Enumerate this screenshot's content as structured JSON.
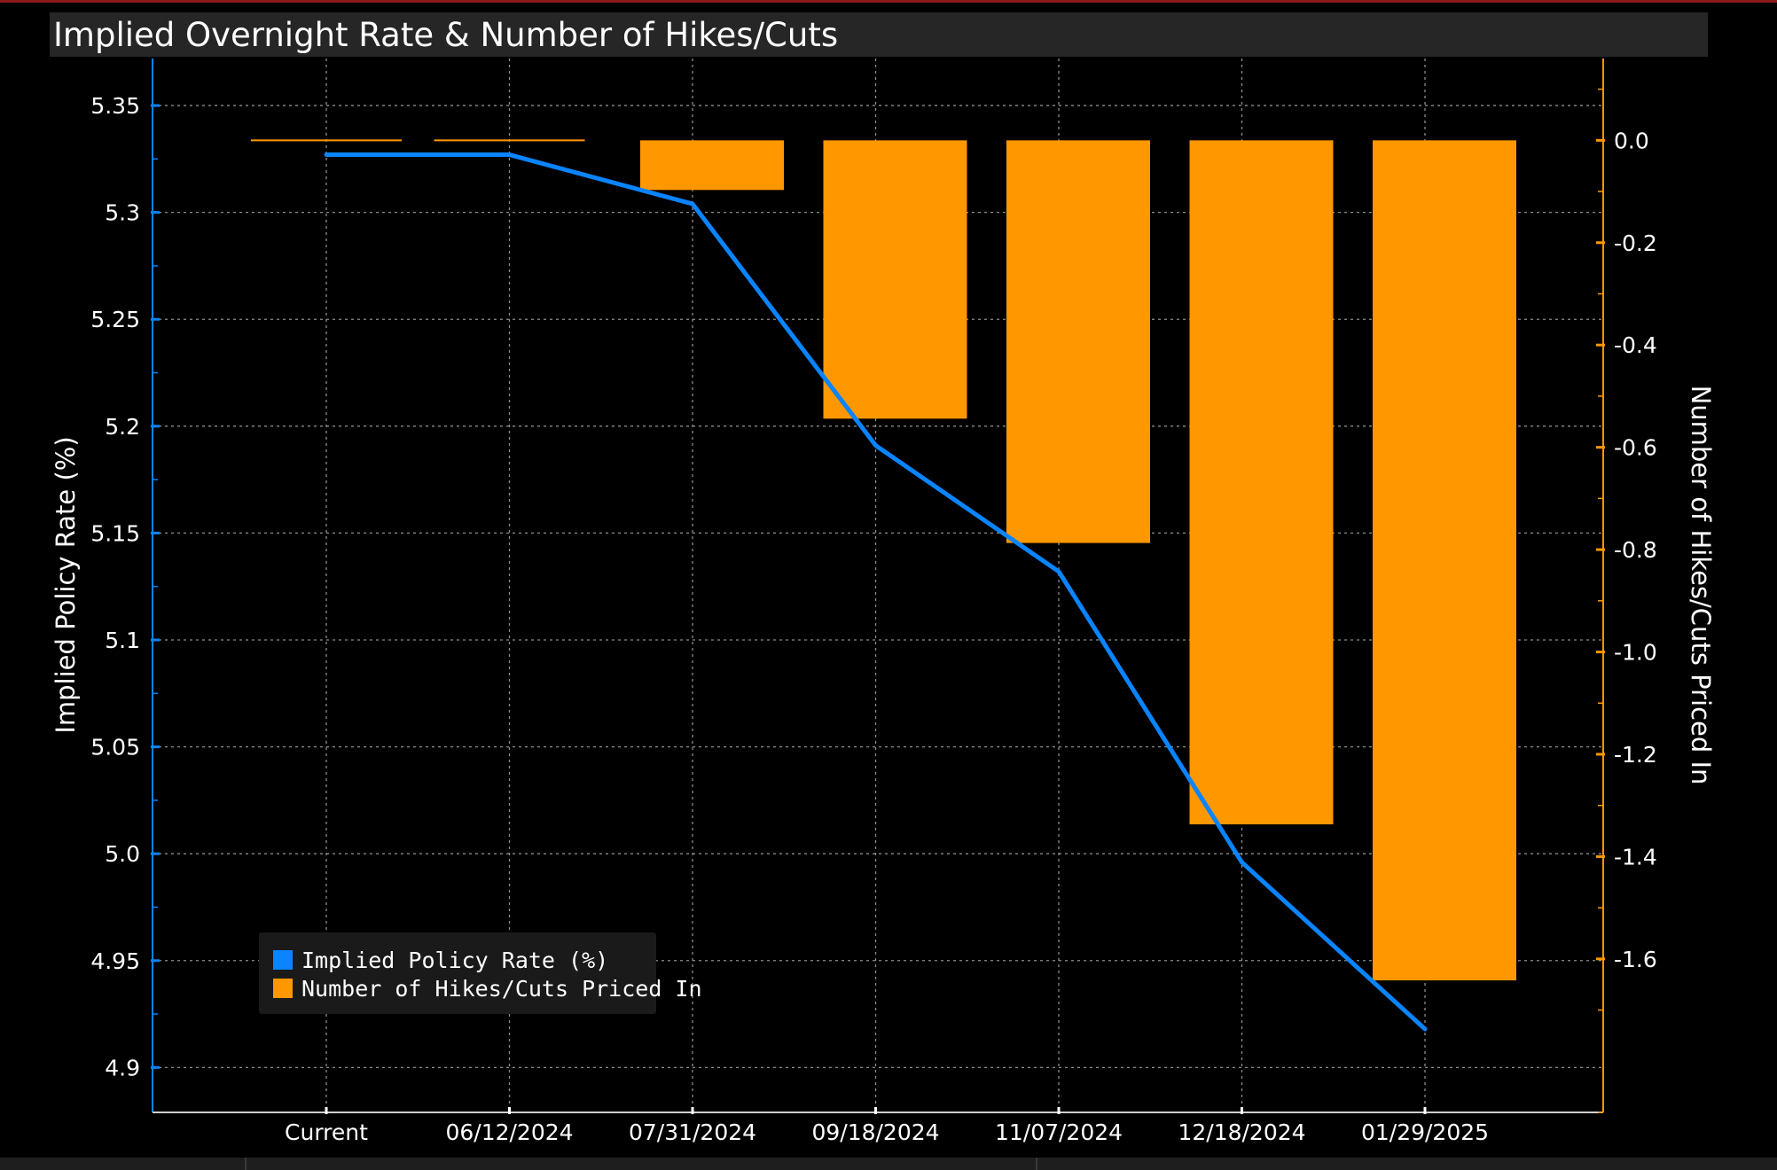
{
  "title": "Implied Overnight Rate & Number of Hikes/Cuts",
  "colors": {
    "line": "#0a84ff",
    "bars": "#ff9800",
    "grid": "#8c8c8c",
    "background": "#000000"
  },
  "chart_data": {
    "type": "bar+line",
    "title": "Implied Overnight Rate & Number of Hikes/Cuts",
    "categories": [
      "Current",
      "06/12/2024",
      "07/31/2024",
      "09/18/2024",
      "11/07/2024",
      "12/18/2024",
      "01/29/2025"
    ],
    "series": [
      {
        "name": "Implied Policy Rate (%)",
        "type": "line",
        "axis": "left",
        "color": "#0a84ff",
        "values": [
          5.327,
          5.327,
          5.304,
          5.191,
          5.132,
          4.996,
          4.918
        ]
      },
      {
        "name": "Number of Hikes/Cuts Priced In",
        "type": "bar",
        "axis": "right",
        "color": "#ff9800",
        "values": [
          0.0,
          0.0,
          -0.097,
          -0.544,
          -0.787,
          -1.337,
          -1.642
        ]
      }
    ],
    "yleft": {
      "label": "Implied Policy Rate (%)",
      "ticks": [
        "5.35",
        "5.3",
        "5.25",
        "5.2",
        "5.15",
        "5.1",
        "5.05",
        "5.0",
        "4.95",
        "4.9"
      ],
      "range": [
        4.879,
        5.372
      ]
    },
    "yright": {
      "label": "Number of Hikes/Cuts Priced In",
      "ticks": [
        "0.0",
        "-0.2",
        "-0.4",
        "-0.6",
        "-0.8",
        "-1.0",
        "-1.2",
        "-1.4",
        "-1.6"
      ],
      "range": [
        -1.9,
        0.16
      ]
    },
    "grid": true,
    "legend": {
      "position": "bottom-left",
      "entries": [
        "Implied Policy Rate (%)",
        "Number of Hikes/Cuts Priced In"
      ]
    }
  }
}
